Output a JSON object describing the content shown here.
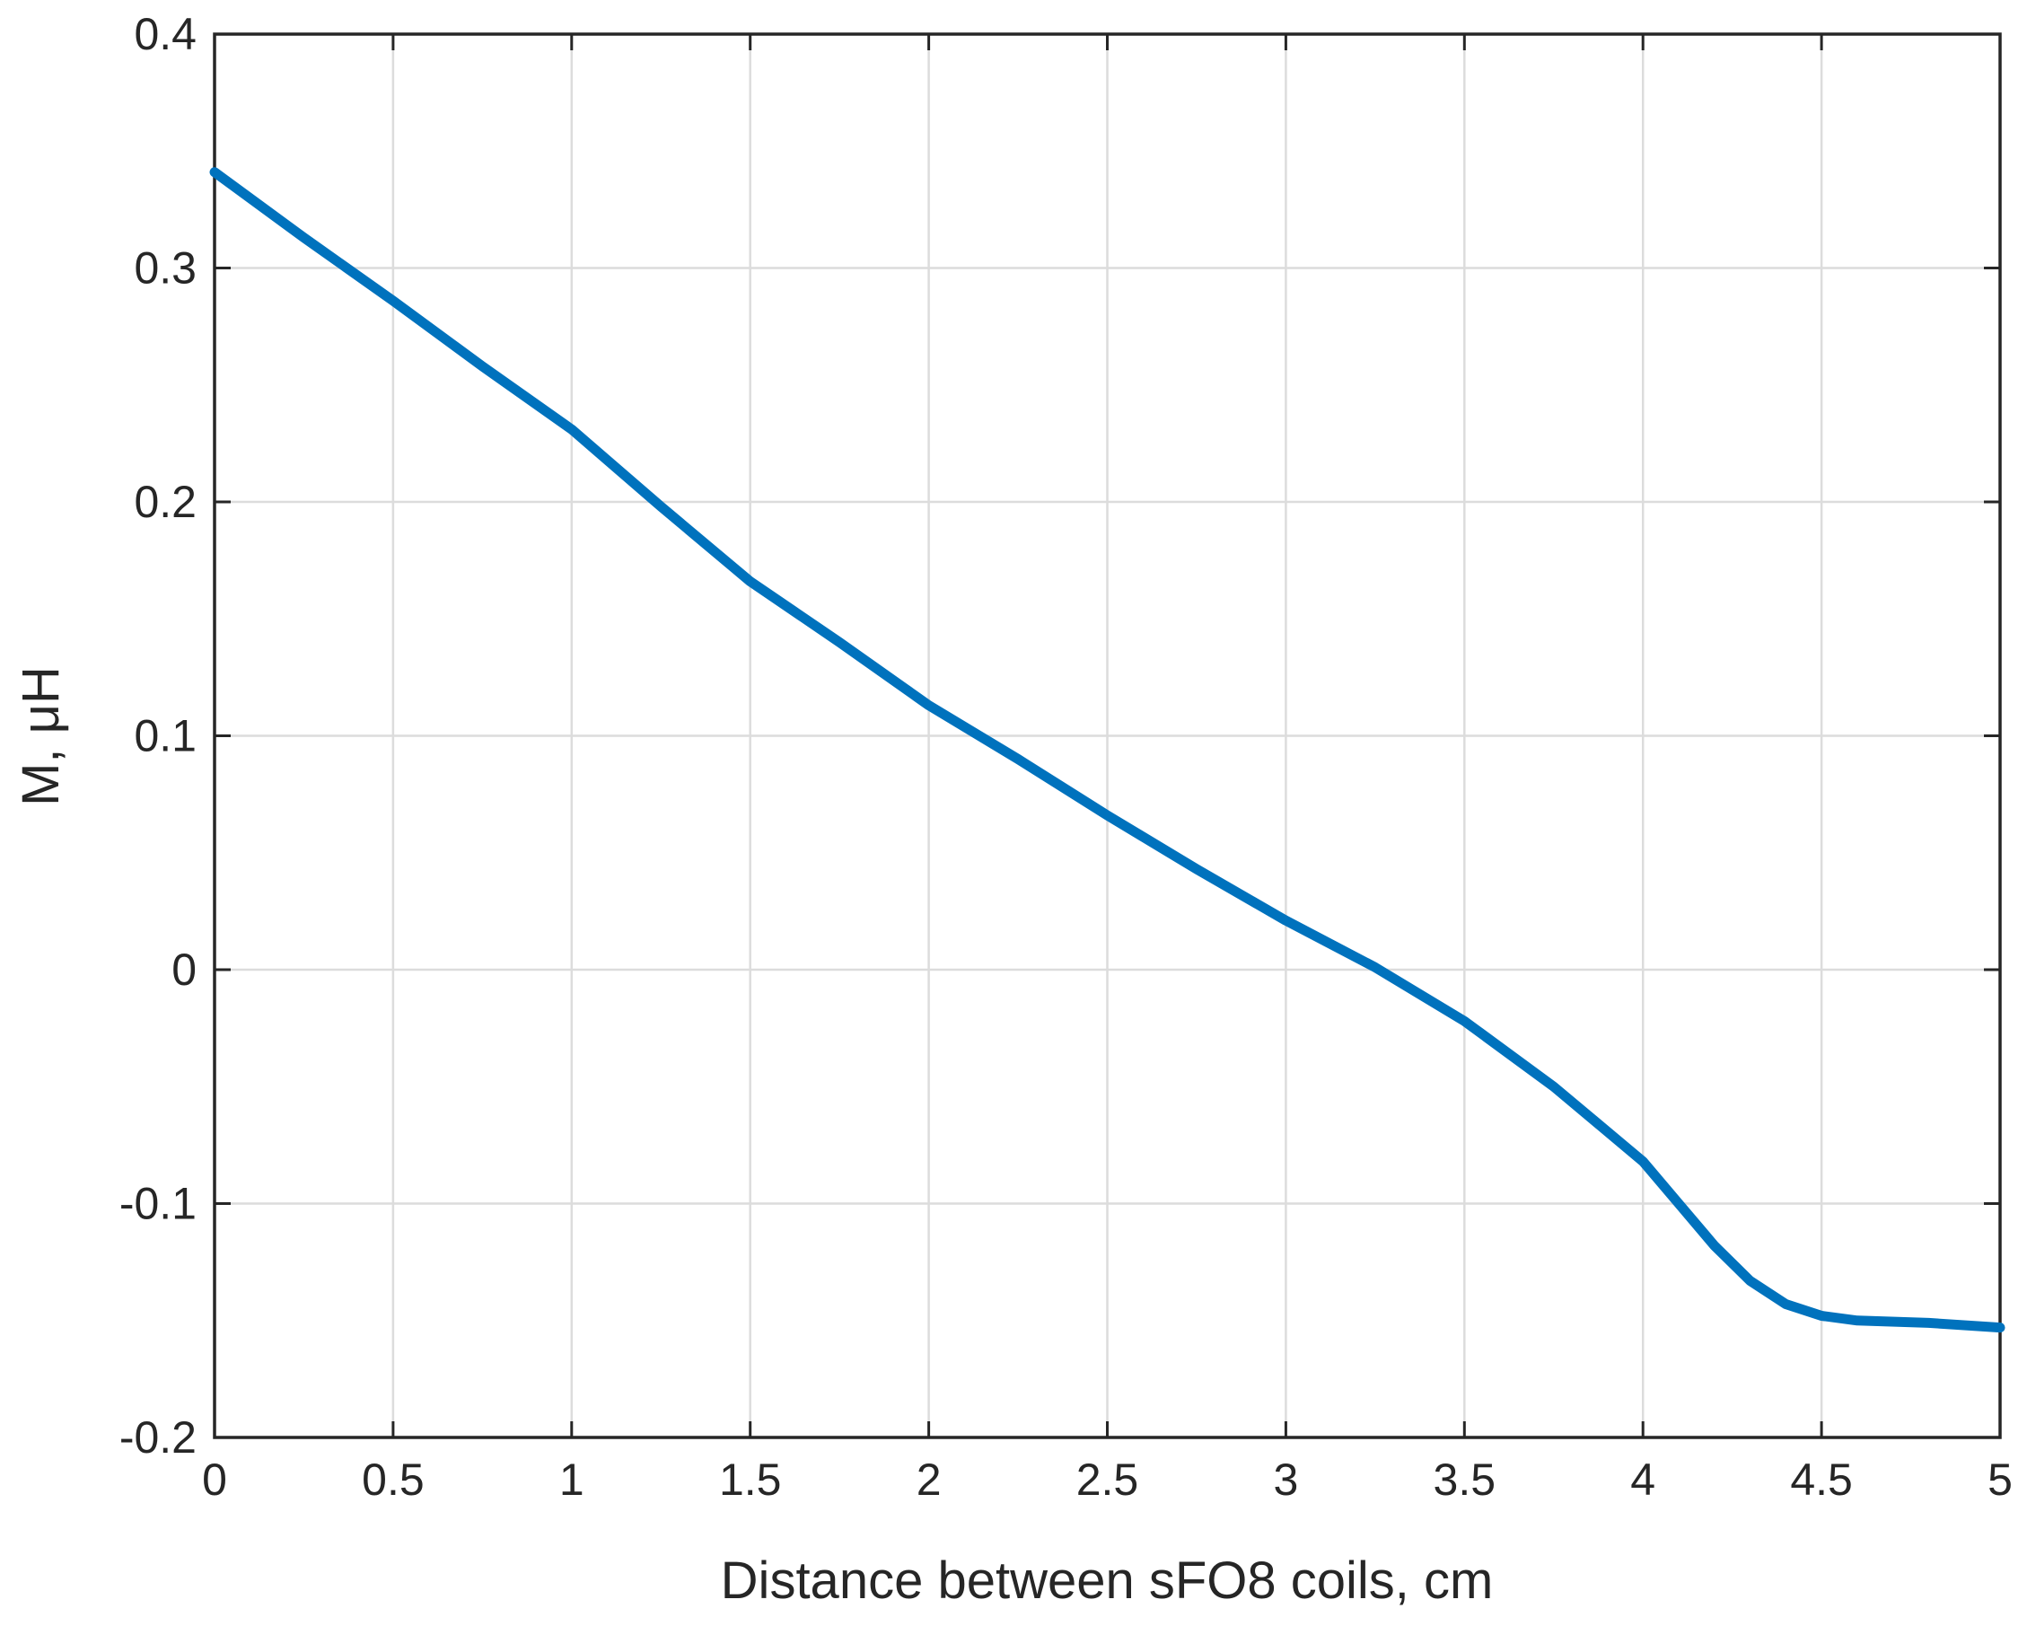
{
  "chart_data": {
    "type": "line",
    "xlabel": "Distance between sFO8 coils, cm",
    "ylabel": "M, μH",
    "xlim": [
      0,
      5
    ],
    "ylim": [
      -0.2,
      0.4
    ],
    "grid": true,
    "legend": "none",
    "x_ticks": [
      "0",
      "0.5",
      "1",
      "1.5",
      "2",
      "2.5",
      "3",
      "3.5",
      "4",
      "4.5",
      "5"
    ],
    "y_ticks": [
      "0.4",
      "0.3",
      "0.2",
      "0.1",
      "0",
      "-0.1",
      "-0.2"
    ],
    "colors": {
      "series": "#0072BD"
    },
    "series": [
      {
        "x": [
          0,
          0.25,
          0.5,
          0.75,
          1.0,
          1.25,
          1.5,
          1.75,
          2.0,
          2.25,
          2.5,
          2.75,
          3.0,
          3.25,
          3.5,
          3.75,
          4.0,
          4.1,
          4.2,
          4.3,
          4.4,
          4.5,
          4.6,
          4.8,
          5.0
        ],
        "y": [
          0.341,
          0.313,
          0.286,
          0.258,
          0.231,
          0.198,
          0.166,
          0.14,
          0.113,
          0.09,
          0.066,
          0.043,
          0.021,
          0.001,
          -0.022,
          -0.05,
          -0.082,
          -0.1,
          -0.118,
          -0.133,
          -0.143,
          -0.148,
          -0.15,
          -0.151,
          -0.153
        ]
      }
    ]
  }
}
